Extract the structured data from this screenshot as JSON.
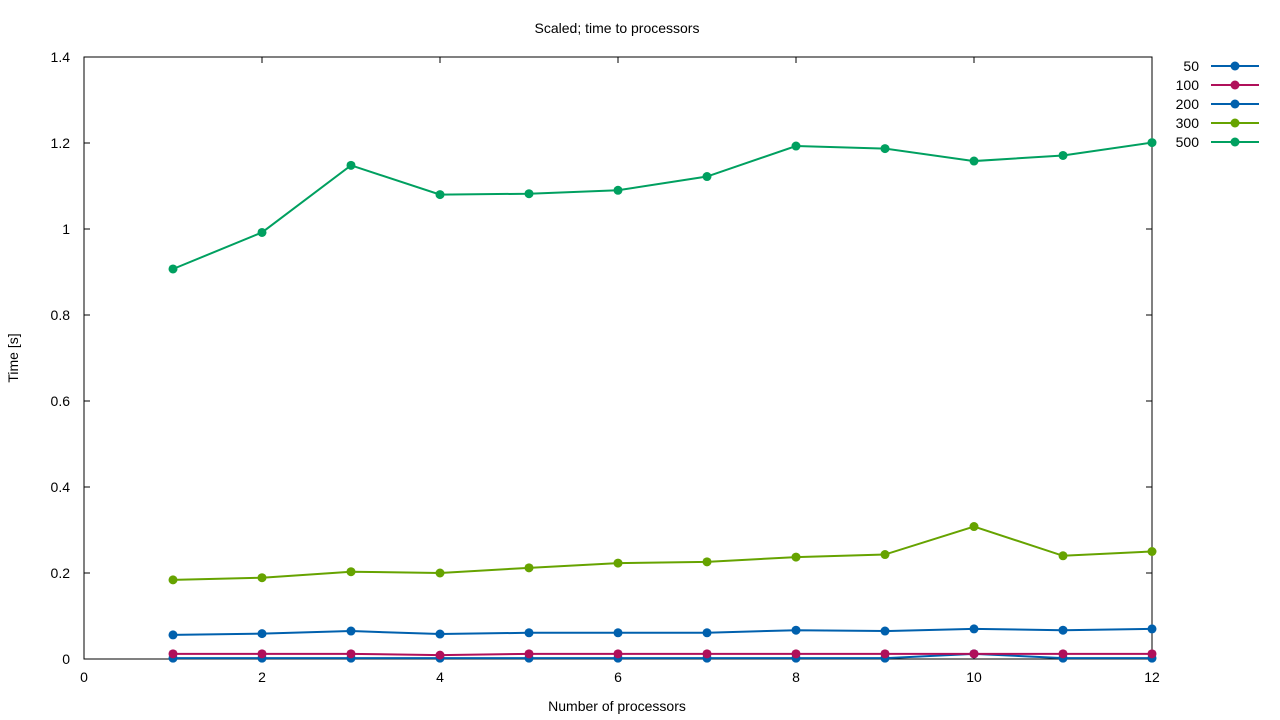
{
  "chart_data": {
    "type": "line",
    "title": "Scaled; time to processors",
    "xlabel": "Number of processors",
    "ylabel": "Time [s]",
    "xlim": [
      0,
      12
    ],
    "ylim": [
      0,
      1.4
    ],
    "xticks": [
      0,
      2,
      4,
      6,
      8,
      10,
      12
    ],
    "xtick_labels": [
      "0",
      "2",
      "4",
      "6",
      "8",
      "10",
      "12"
    ],
    "yticks": [
      0,
      0.2,
      0.4,
      0.6,
      0.8,
      1,
      1.2,
      1.4
    ],
    "ytick_labels": [
      "0",
      "0.2",
      "0.4",
      "0.6",
      "0.8",
      "1",
      "1.2",
      "1.4"
    ],
    "grid": false,
    "legend_position": "outside top-right",
    "x": [
      1,
      2,
      3,
      4,
      5,
      6,
      7,
      8,
      9,
      10,
      11,
      12
    ],
    "series": [
      {
        "name": "50",
        "color": "#0060ad",
        "values": [
          0.002,
          0.002,
          0.002,
          0.002,
          0.002,
          0.002,
          0.002,
          0.002,
          0.002,
          0.012,
          0.002,
          0.002
        ]
      },
      {
        "name": "100",
        "color": "#b0105a",
        "values": [
          0.012,
          0.012,
          0.012,
          0.009,
          0.012,
          0.012,
          0.012,
          0.012,
          0.012,
          0.012,
          0.012,
          0.012
        ]
      },
      {
        "name": "200",
        "color": "#0060ad",
        "values": [
          0.056,
          0.059,
          0.065,
          0.058,
          0.061,
          0.061,
          0.061,
          0.067,
          0.065,
          0.07,
          0.067,
          0.07
        ]
      },
      {
        "name": "300",
        "color": "#66a300",
        "values": [
          0.184,
          0.189,
          0.203,
          0.2,
          0.212,
          0.223,
          0.226,
          0.237,
          0.243,
          0.308,
          0.24,
          0.25
        ]
      },
      {
        "name": "500",
        "color": "#00a060",
        "values": [
          0.907,
          0.992,
          1.148,
          1.08,
          1.082,
          1.09,
          1.122,
          1.193,
          1.187,
          1.158,
          1.171,
          1.201
        ]
      }
    ]
  }
}
